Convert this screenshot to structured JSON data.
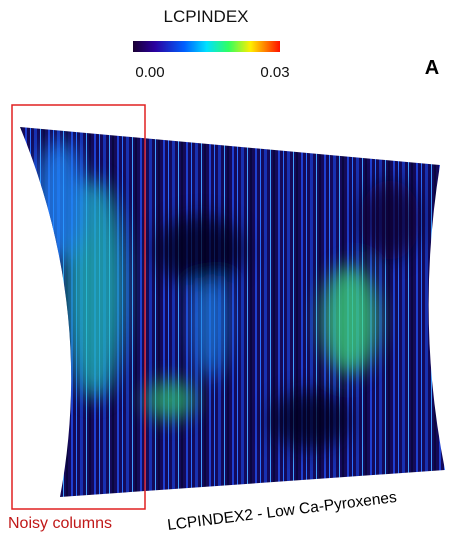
{
  "colorbar": {
    "title": "LCPINDEX",
    "ticks": [
      {
        "value": 0,
        "label": "0.00"
      },
      {
        "value": 0.03,
        "label": "0.03"
      }
    ]
  },
  "panel_label": "A",
  "annotation": "Noisy columns",
  "caption": "LCPINDEX2 - Low Ca-Pyroxenes"
}
